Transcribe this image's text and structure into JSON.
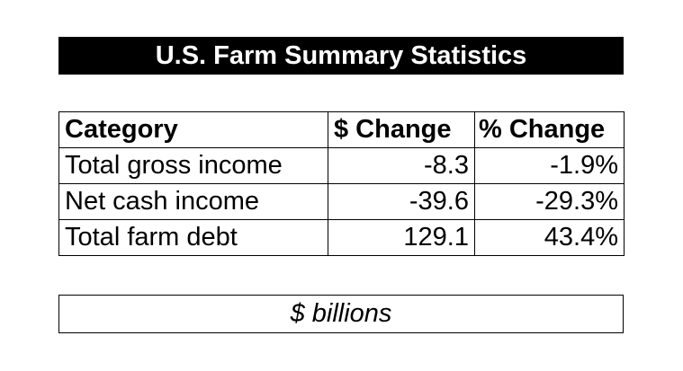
{
  "title": "U.S. Farm Summary Statistics",
  "table": {
    "headers": {
      "category": "Category",
      "dollar_change": "$ Change",
      "percent_change": "% Change"
    },
    "rows": [
      {
        "category": "Total gross income",
        "dollar_change": "-8.3",
        "percent_change": "-1.9%"
      },
      {
        "category": "Net cash income",
        "dollar_change": "-39.6",
        "percent_change": "-29.3%"
      },
      {
        "category": "Total farm debt",
        "dollar_change": "129.1",
        "percent_change": "43.4%"
      }
    ]
  },
  "units": "$ billions"
}
